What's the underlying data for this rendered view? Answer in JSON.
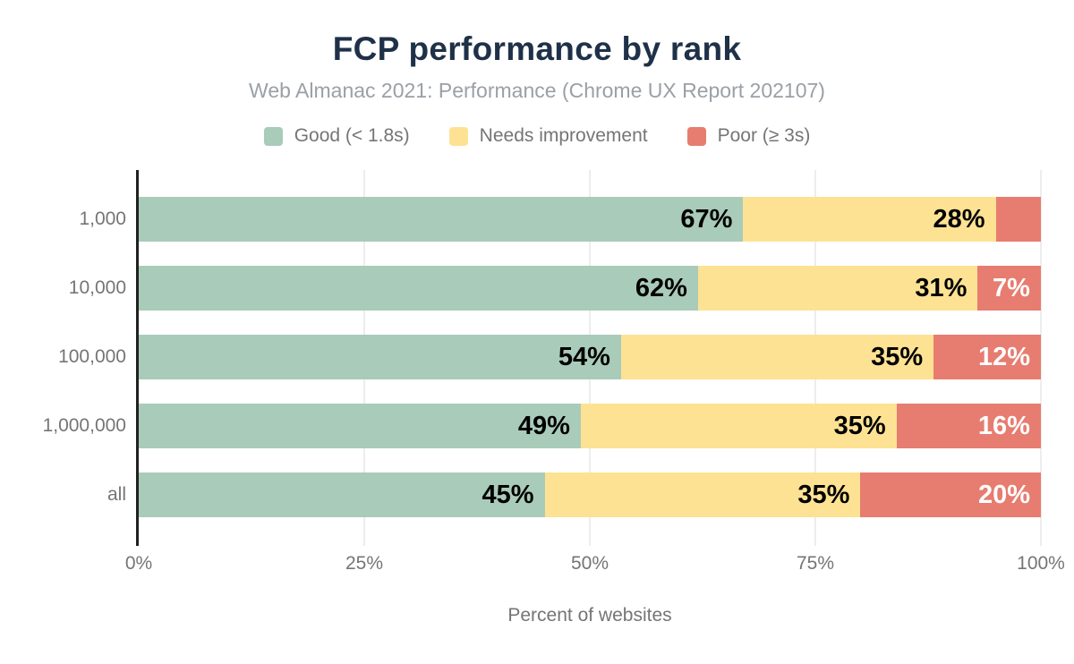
{
  "chart_data": {
    "type": "bar",
    "orientation": "horizontal",
    "stacked": true,
    "title": "FCP performance by rank",
    "subtitle": "Web Almanac 2021: Performance (Chrome UX Report 202107)",
    "xlabel": "Percent of websites",
    "ylabel": "",
    "categories": [
      "1,000",
      "10,000",
      "100,000",
      "1,000,000",
      "all"
    ],
    "series": [
      {
        "name": "Good (< 1.8s)",
        "slug": "good",
        "color": "#a9cbb9",
        "values": [
          67,
          62,
          54,
          49,
          45
        ],
        "labels": [
          "67%",
          "62%",
          "54%",
          "49%",
          "45%"
        ],
        "label_color": "#000000"
      },
      {
        "name": "Needs improvement",
        "slug": "needs-improvement",
        "color": "#fde293",
        "values": [
          28,
          31,
          35,
          35,
          35
        ],
        "labels": [
          "28%",
          "31%",
          "35%",
          "35%",
          "35%"
        ],
        "label_color": "#000000"
      },
      {
        "name": "Poor (≥ 3s)",
        "slug": "poor",
        "color": "#e77c70",
        "values": [
          5,
          7,
          12,
          16,
          20
        ],
        "labels": [
          "",
          "7%",
          "12%",
          "16%",
          "20%"
        ],
        "label_color": "#ffffff"
      }
    ],
    "x_ticks": [
      "0%",
      "25%",
      "50%",
      "75%",
      "100%"
    ],
    "x_tick_values": [
      0,
      25,
      50,
      75,
      100
    ],
    "xlim": [
      0,
      100
    ],
    "grid": "vertical",
    "legend_position": "top",
    "colors": {
      "title": "#1e3148",
      "subtitle": "#9aa0a6",
      "axis_text": "#757575",
      "axis_line": "#212121",
      "gridline": "#ededed",
      "background": "#ffffff"
    }
  }
}
